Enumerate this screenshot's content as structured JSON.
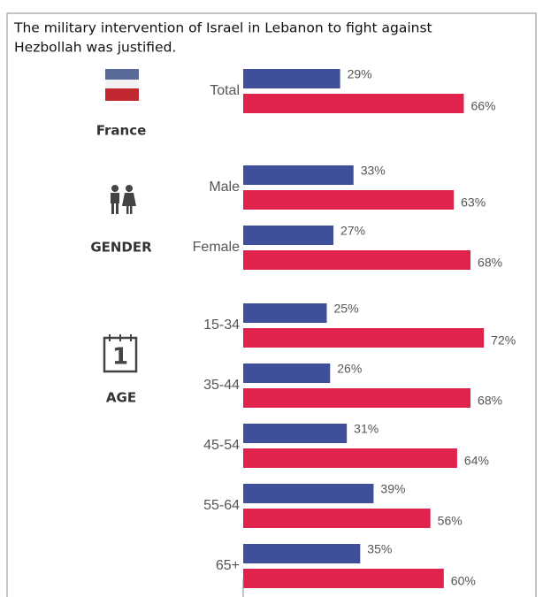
{
  "chart_data": {
    "type": "bar",
    "orientation": "horizontal",
    "title": [
      "The military intervention of Israel in Lebanon to fight against",
      "Hezbollah was justified."
    ],
    "groups": [
      {
        "label": "France",
        "categories": [
          "Total"
        ],
        "series": [
          {
            "color": "#3f4f9a",
            "values": [
              29
            ],
            "value_labels": [
              "29%"
            ]
          },
          {
            "color": "#e0234c",
            "values": [
              66
            ],
            "value_labels": [
              "66%"
            ]
          }
        ]
      },
      {
        "label": "GENDER",
        "categories": [
          "Male",
          "Female"
        ],
        "series": [
          {
            "color": "#3f4f9a",
            "values": [
              33,
              27
            ],
            "value_labels": [
              "33%",
              "27%"
            ]
          },
          {
            "color": "#e0234c",
            "values": [
              63,
              68
            ],
            "value_labels": [
              "63%",
              "68%"
            ]
          }
        ]
      },
      {
        "label": "AGE",
        "icon_text": "1",
        "categories": [
          "15-34",
          "35-44",
          "45-54",
          "55-64",
          "65+"
        ],
        "series": [
          {
            "color": "#3f4f9a",
            "values": [
              25,
              26,
              31,
              39,
              35
            ],
            "value_labels": [
              "25%",
              "26%",
              "31%",
              "39%",
              "35%"
            ]
          },
          {
            "color": "#e0234c",
            "values": [
              72,
              68,
              64,
              56,
              60
            ],
            "value_labels": [
              "72%",
              "68%",
              "64%",
              "56%",
              "60%"
            ]
          }
        ]
      }
    ]
  }
}
